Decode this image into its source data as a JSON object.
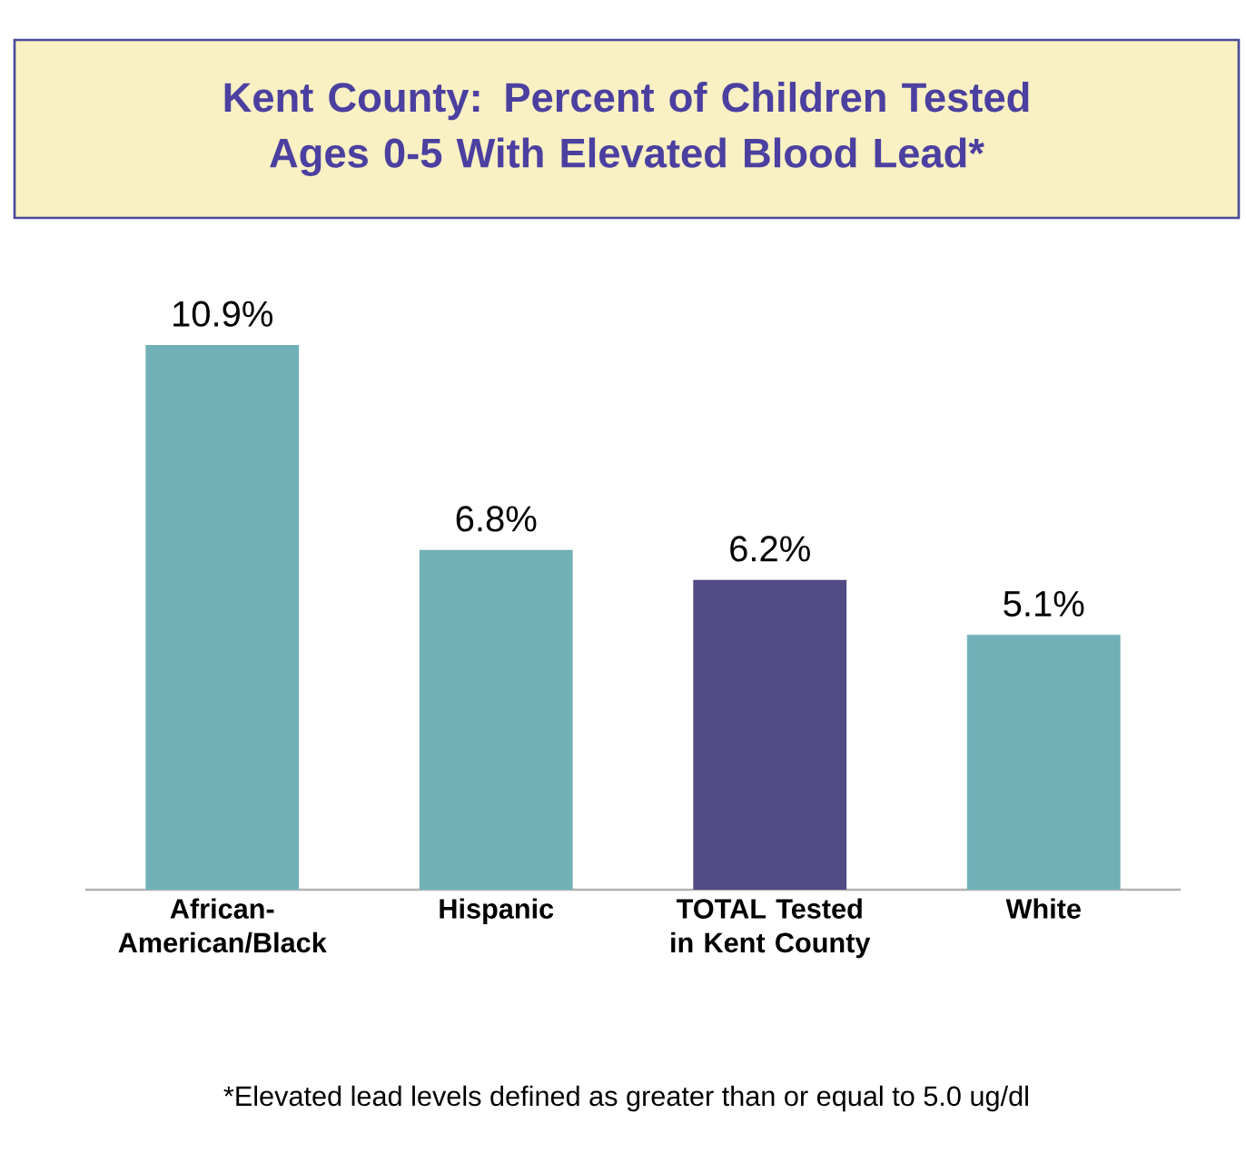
{
  "chart_data": {
    "type": "bar",
    "title": "Kent County: Percent of Children Tested Ages 0-5 With Elevated Blood Lead*",
    "categories": [
      "African-American/Black",
      "Hispanic",
      "TOTAL Tested in Kent County",
      "White"
    ],
    "values": [
      10.9,
      6.8,
      6.2,
      5.1
    ],
    "colors": [
      "#72b0b8",
      "#72b0b8",
      "#524c86",
      "#72b0b8"
    ],
    "value_labels": [
      "10.9%",
      "6.8%",
      "6.2%",
      "5.1%"
    ],
    "annotations": [
      "*Elevated lead levels defined as greater than or equal to 5.0 ug/dl"
    ]
  }
}
